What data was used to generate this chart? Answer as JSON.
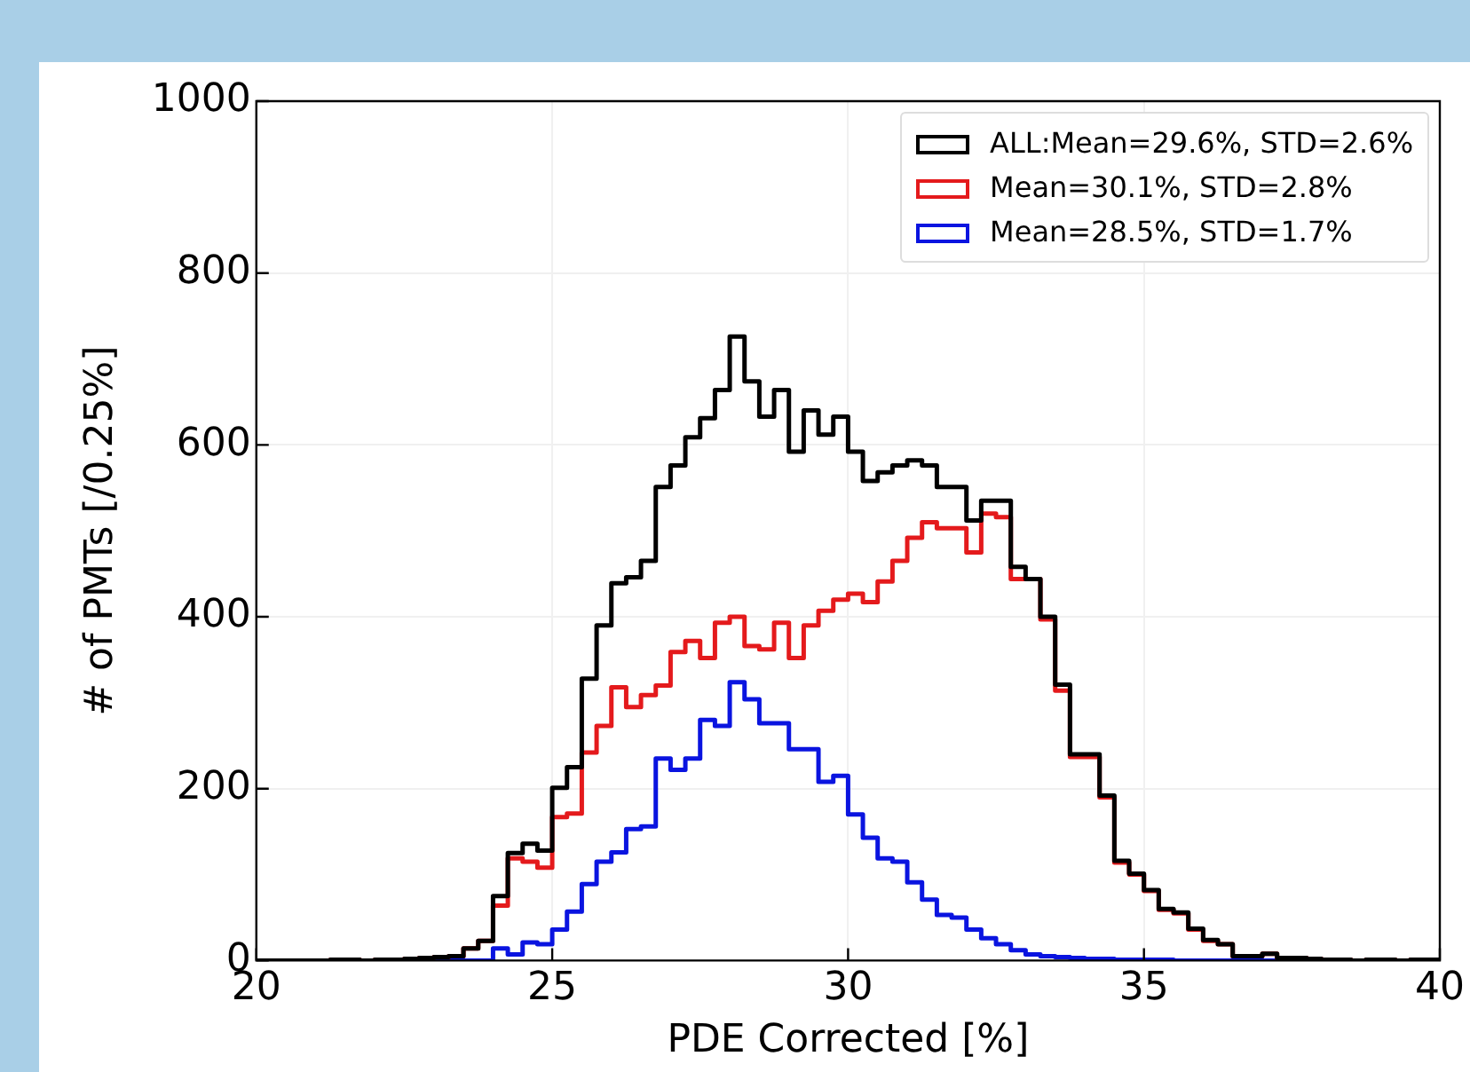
{
  "chart_data": {
    "type": "histogram",
    "xlabel": "PDE Corrected [%]",
    "ylabel": "# of PMTs [/0.25%]",
    "bins": [
      20,
      20.25,
      20.5,
      20.75,
      21,
      21.25,
      21.5,
      21.75,
      22,
      22.25,
      22.5,
      22.75,
      23,
      23.25,
      23.5,
      23.75,
      24,
      24.25,
      24.5,
      24.75,
      25,
      25.25,
      25.5,
      25.75,
      26,
      26.25,
      26.5,
      26.75,
      27,
      27.25,
      27.5,
      27.75,
      28,
      28.25,
      28.5,
      28.75,
      29,
      29.25,
      29.5,
      29.75,
      30,
      30.25,
      30.5,
      30.75,
      31,
      31.25,
      31.5,
      31.75,
      32,
      32.25,
      32.5,
      32.75,
      33,
      33.25,
      33.5,
      33.75,
      34,
      34.25,
      34.5,
      34.75,
      35,
      35.25,
      35.5,
      35.75,
      36,
      36.25,
      36.5,
      36.75,
      37,
      37.25,
      37.5,
      37.75,
      38,
      38.25,
      38.5,
      38.75,
      39,
      39.25,
      39.5,
      39.75,
      40
    ],
    "series": [
      {
        "name": "ALL:Mean=29.6%, STD=2.6%",
        "color": "#000000",
        "values": [
          0,
          0,
          0,
          0,
          0,
          1,
          1,
          0,
          1,
          1,
          2,
          3,
          4,
          5,
          14,
          23,
          75,
          125,
          136,
          128,
          201,
          225,
          328,
          390,
          439,
          446,
          465,
          551,
          576,
          609,
          631,
          664,
          726,
          674,
          633,
          664,
          592,
          640,
          612,
          633,
          592,
          558,
          568,
          576,
          582,
          576,
          551,
          551,
          512,
          535,
          535,
          458,
          444,
          400,
          321,
          240,
          240,
          192,
          116,
          101,
          82,
          60,
          56,
          37,
          24,
          19,
          5,
          5,
          8,
          3,
          3,
          2,
          1,
          1,
          0,
          1,
          1,
          0,
          1,
          1
        ]
      },
      {
        "name": "Mean=30.1%, STD=2.8%",
        "color": "#e41a1c",
        "values": [
          0,
          0,
          0,
          0,
          0,
          1,
          1,
          0,
          1,
          1,
          2,
          3,
          4,
          5,
          14,
          23,
          64,
          119,
          115,
          108,
          167,
          171,
          242,
          273,
          318,
          295,
          309,
          320,
          359,
          372,
          352,
          393,
          400,
          366,
          362,
          393,
          352,
          390,
          407,
          420,
          427,
          417,
          441,
          465,
          492,
          510,
          503,
          503,
          475,
          520,
          516,
          444,
          444,
          397,
          314,
          237,
          237,
          190,
          114,
          100,
          81,
          59,
          55,
          36,
          23,
          19,
          5,
          5,
          8,
          3,
          3,
          2,
          1,
          1,
          0,
          1,
          1,
          0,
          1,
          1
        ]
      },
      {
        "name": "Mean=28.5%, STD=1.7%",
        "color": "#0a14e0",
        "values": [
          0,
          0,
          0,
          0,
          0,
          0,
          0,
          0,
          0,
          0,
          0,
          0,
          0,
          0,
          0,
          0,
          14,
          7,
          21,
          19,
          36,
          57,
          89,
          115,
          126,
          153,
          156,
          235,
          222,
          235,
          280,
          273,
          324,
          304,
          276,
          276,
          246,
          246,
          208,
          215,
          170,
          143,
          119,
          115,
          91,
          71,
          53,
          50,
          36,
          26,
          19,
          12,
          7,
          5,
          4,
          3,
          2,
          2,
          1,
          1,
          1,
          1,
          0,
          0,
          0,
          0,
          0,
          0,
          0,
          0,
          0,
          0,
          0,
          0,
          0,
          0,
          0,
          0,
          0,
          0
        ]
      }
    ],
    "xlim": [
      20,
      40
    ],
    "xticks": [
      20,
      25,
      30,
      35,
      40
    ],
    "ylim": [
      0,
      1000
    ],
    "yticks": [
      0,
      200,
      400,
      600,
      800,
      1000
    ],
    "grid": true,
    "legend": "top right"
  }
}
